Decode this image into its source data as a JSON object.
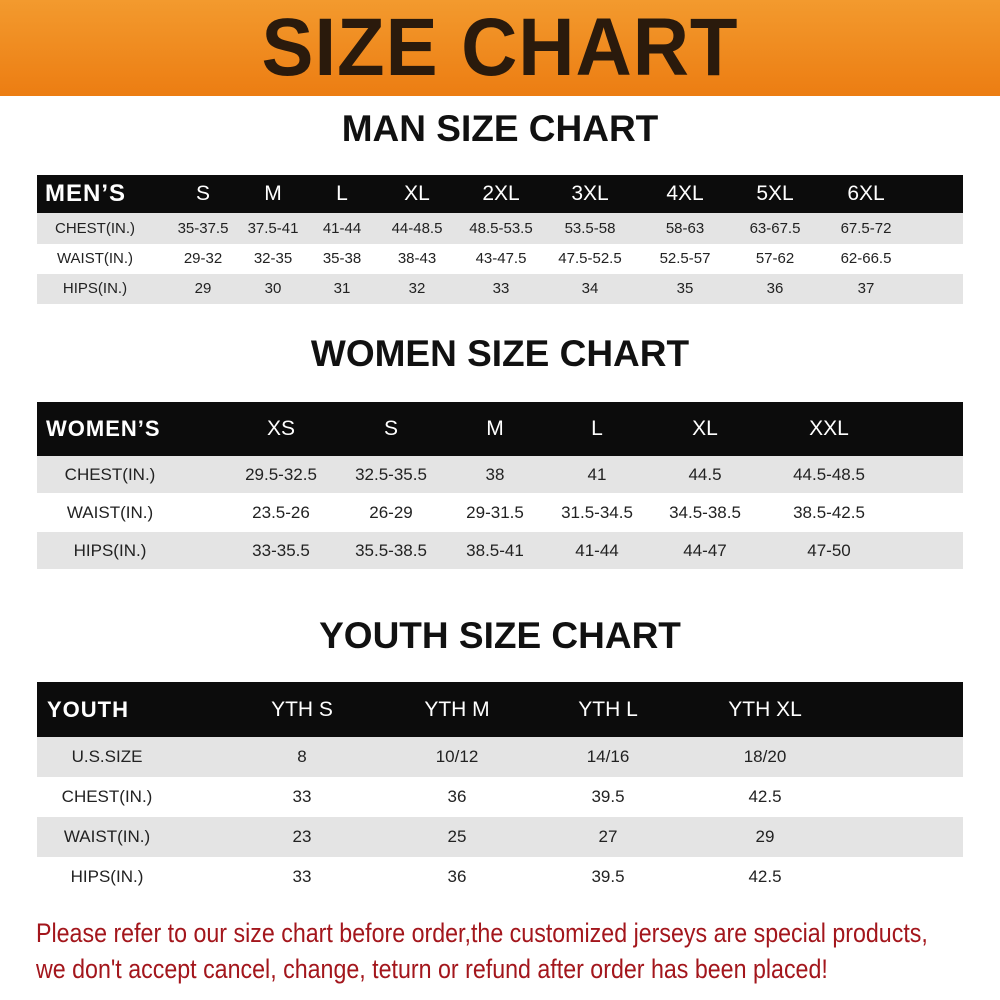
{
  "banner": {
    "title": "SIZE CHART"
  },
  "men": {
    "title": "MAN SIZE CHART",
    "headers": [
      "MEN’S",
      "S",
      "M",
      "L",
      "XL",
      "2XL",
      "3XL",
      "4XL",
      "5XL",
      "6XL"
    ],
    "rows": [
      [
        "CHEST(IN.)",
        "35-37.5",
        "37.5-41",
        "41-44",
        "44-48.5",
        "48.5-53.5",
        "53.5-58",
        "58-63",
        "63-67.5",
        "67.5-72"
      ],
      [
        "WAIST(IN.)",
        "29-32",
        "32-35",
        "35-38",
        "38-43",
        "43-47.5",
        "47.5-52.5",
        "52.5-57",
        "57-62",
        "62-66.5"
      ],
      [
        "HIPS(IN.)",
        "29",
        "30",
        "31",
        "32",
        "33",
        "34",
        "35",
        "36",
        "37"
      ]
    ]
  },
  "women": {
    "title": "WOMEN SIZE CHART",
    "headers": [
      "WOMEN’S",
      "XS",
      "S",
      "M",
      "L",
      "XL",
      "XXL"
    ],
    "rows": [
      [
        "CHEST(IN.)",
        "29.5-32.5",
        "32.5-35.5",
        "38",
        "41",
        "44.5",
        "44.5-48.5"
      ],
      [
        "WAIST(IN.)",
        "23.5-26",
        "26-29",
        "29-31.5",
        "31.5-34.5",
        "34.5-38.5",
        "38.5-42.5"
      ],
      [
        "HIPS(IN.)",
        "33-35.5",
        "35.5-38.5",
        "38.5-41",
        "41-44",
        "44-47",
        "47-50"
      ]
    ]
  },
  "youth": {
    "title": "YOUTH SIZE CHART",
    "headers": [
      "YOUTH",
      "YTH S",
      "YTH M",
      "YTH L",
      "YTH XL"
    ],
    "rows": [
      [
        "U.S.SIZE",
        "8",
        "10/12",
        "14/16",
        "18/20"
      ],
      [
        "CHEST(IN.)",
        "33",
        "36",
        "39.5",
        "42.5"
      ],
      [
        "WAIST(IN.)",
        "23",
        "25",
        "27",
        "29"
      ],
      [
        "HIPS(IN.)",
        "33",
        "36",
        "39.5",
        "42.5"
      ]
    ]
  },
  "footer": {
    "line1": "Please refer to our size chart before order,the customized jerseys are special products,",
    "line2": "we don't accept cancel, change, teturn or refund after order has been placed!"
  },
  "colors": {
    "banner": "#ec7d12",
    "header_row": "#0c0c0c",
    "stripe": "#e4e4e4",
    "notice": "#a3161c"
  }
}
